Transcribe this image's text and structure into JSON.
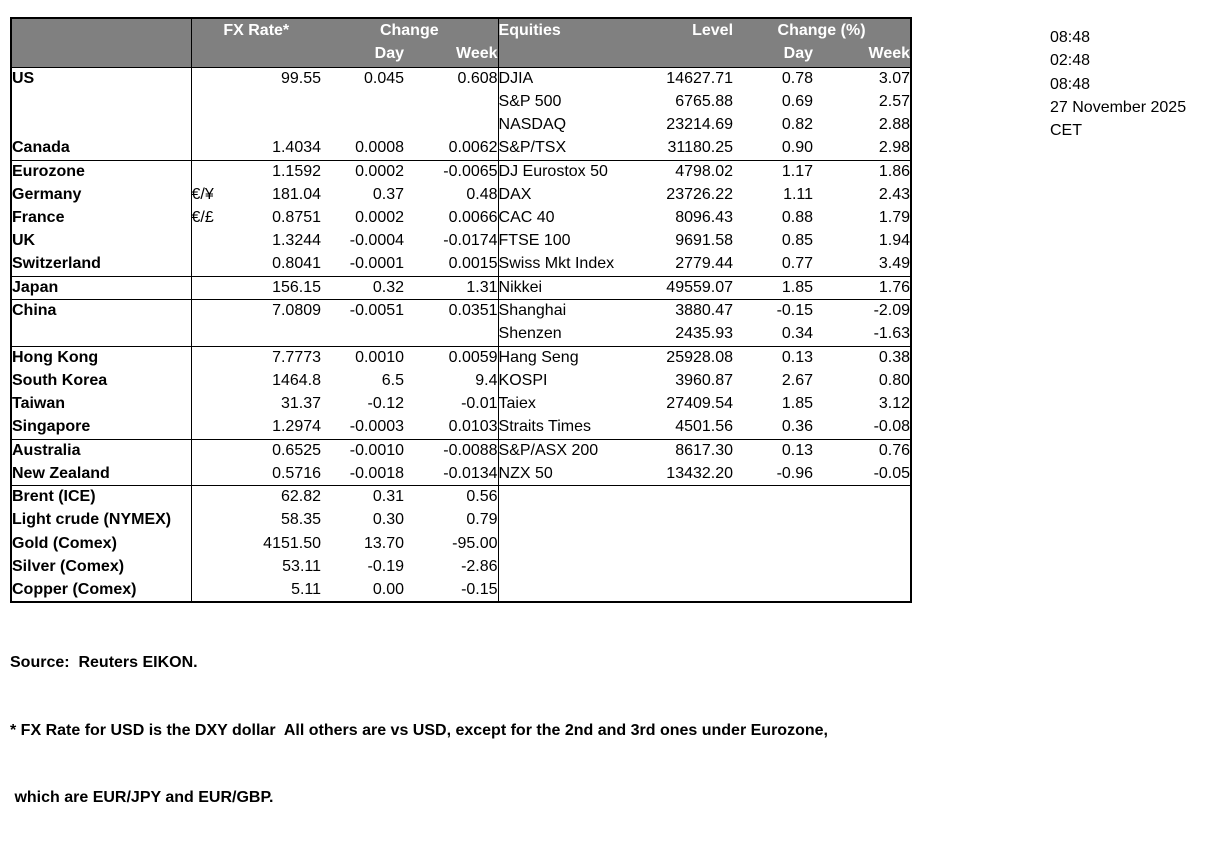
{
  "colors": {
    "header_bg": "#808080",
    "header_text": "#ffffff",
    "text": "#000000",
    "border": "#000000",
    "background": "#ffffff"
  },
  "table": {
    "header": {
      "fx_rate": "FX Rate*",
      "change": "Change",
      "day": "Day",
      "week": "Week",
      "equities": "Equities",
      "level": "Level",
      "change_pct": "Change (%)"
    },
    "rows": [
      {
        "country": "US",
        "indent": false,
        "sym": "",
        "rate": "99.55",
        "day": "0.045",
        "week": "0.608",
        "equity": "DJIA",
        "level": "14627.71",
        "eqDay": "0.78",
        "eqWeek": "3.07",
        "sep": false
      },
      {
        "country": "",
        "indent": false,
        "sym": "",
        "rate": "",
        "day": "",
        "week": "",
        "equity": "S&P 500",
        "level": "6765.88",
        "eqDay": "0.69",
        "eqWeek": "2.57",
        "sep": false
      },
      {
        "country": "",
        "indent": false,
        "sym": "",
        "rate": "",
        "day": "",
        "week": "",
        "equity": "NASDAQ",
        "level": "23214.69",
        "eqDay": "0.82",
        "eqWeek": "2.88",
        "sep": false
      },
      {
        "country": "Canada",
        "indent": false,
        "sym": "",
        "rate": "1.4034",
        "day": "0.0008",
        "week": "0.0062",
        "equity": "S&P/TSX",
        "level": "31180.25",
        "eqDay": "0.90",
        "eqWeek": "2.98",
        "sep": false
      },
      {
        "country": "Eurozone",
        "indent": false,
        "sym": "",
        "rate": "1.1592",
        "day": "0.0002",
        "week": "-0.0065",
        "equity": "DJ Eurostox 50",
        "level": "4798.02",
        "eqDay": "1.17",
        "eqWeek": "1.86",
        "sep": true
      },
      {
        "country": "Germany",
        "indent": true,
        "sym": "€/¥",
        "rate": "181.04",
        "day": "0.37",
        "week": "0.48",
        "equity": "DAX",
        "level": "23726.22",
        "eqDay": "1.11",
        "eqWeek": "2.43",
        "sep": false
      },
      {
        "country": "France",
        "indent": true,
        "sym": "€/£",
        "rate": "0.8751",
        "day": "0.0002",
        "week": "0.0066",
        "equity": "CAC 40",
        "level": "8096.43",
        "eqDay": "0.88",
        "eqWeek": "1.79",
        "sep": false
      },
      {
        "country": "UK",
        "indent": false,
        "sym": "",
        "rate": "1.3244",
        "day": "-0.0004",
        "week": "-0.0174",
        "equity": "FTSE 100",
        "level": "9691.58",
        "eqDay": "0.85",
        "eqWeek": "1.94",
        "sep": false
      },
      {
        "country": "Switzerland",
        "indent": false,
        "sym": "",
        "rate": "0.8041",
        "day": "-0.0001",
        "week": "0.0015",
        "equity": "Swiss Mkt Index",
        "level": "2779.44",
        "eqDay": "0.77",
        "eqWeek": "3.49",
        "sep": false
      },
      {
        "country": "Japan",
        "indent": false,
        "sym": "",
        "rate": "156.15",
        "day": "0.32",
        "week": "1.31",
        "equity": "Nikkei",
        "level": "49559.07",
        "eqDay": "1.85",
        "eqWeek": "1.76",
        "sep": true
      },
      {
        "country": "China",
        "indent": false,
        "sym": "",
        "rate": "7.0809",
        "day": "-0.0051",
        "week": "0.0351",
        "equity": "Shanghai",
        "level": "3880.47",
        "eqDay": "-0.15",
        "eqWeek": "-2.09",
        "sep": true
      },
      {
        "country": "",
        "indent": false,
        "sym": "",
        "rate": "",
        "day": "",
        "week": "",
        "equity": "Shenzen",
        "level": "2435.93",
        "eqDay": "0.34",
        "eqWeek": "-1.63",
        "sep": false
      },
      {
        "country": "Hong Kong",
        "indent": false,
        "sym": "",
        "rate": "7.7773",
        "day": "0.0010",
        "week": "0.0059",
        "equity": "Hang Seng",
        "level": "25928.08",
        "eqDay": "0.13",
        "eqWeek": "0.38",
        "sep": true
      },
      {
        "country": "South Korea",
        "indent": false,
        "sym": "",
        "rate": "1464.8",
        "day": "6.5",
        "week": "9.4",
        "equity": "KOSPI",
        "level": "3960.87",
        "eqDay": "2.67",
        "eqWeek": "0.80",
        "sep": false
      },
      {
        "country": "Taiwan",
        "indent": false,
        "sym": "",
        "rate": "31.37",
        "day": "-0.12",
        "week": "-0.01",
        "equity": "Taiex",
        "level": "27409.54",
        "eqDay": "1.85",
        "eqWeek": "3.12",
        "sep": false
      },
      {
        "country": "Singapore",
        "indent": false,
        "sym": "",
        "rate": "1.2974",
        "day": "-0.0003",
        "week": "0.0103",
        "equity": "Straits Times",
        "level": "4501.56",
        "eqDay": "0.36",
        "eqWeek": "-0.08",
        "sep": false
      },
      {
        "country": "Australia",
        "indent": false,
        "sym": "",
        "rate": "0.6525",
        "day": "-0.0010",
        "week": "-0.0088",
        "equity": "S&P/ASX  200",
        "level": "8617.30",
        "eqDay": "0.13",
        "eqWeek": "0.76",
        "sep": true
      },
      {
        "country": "New Zealand",
        "indent": false,
        "sym": "",
        "rate": "0.5716",
        "day": "-0.0018",
        "week": "-0.0134",
        "equity": "NZX 50",
        "level": "13432.20",
        "eqDay": "-0.96",
        "eqWeek": "-0.05",
        "sep": false
      },
      {
        "country": "Brent (ICE)",
        "indent": false,
        "sym": "",
        "rate": "62.82",
        "day": "0.31",
        "week": "0.56",
        "equity": "",
        "level": "",
        "eqDay": "",
        "eqWeek": "",
        "sep": true
      },
      {
        "country": "Light crude (NYMEX)",
        "indent": false,
        "sym": "",
        "rate": "58.35",
        "day": "0.30",
        "week": "0.79",
        "equity": "",
        "level": "",
        "eqDay": "",
        "eqWeek": "",
        "sep": false
      },
      {
        "country": "Gold (Comex)",
        "indent": false,
        "sym": "",
        "rate": "4151.50",
        "day": "13.70",
        "week": "-95.00",
        "equity": "",
        "level": "",
        "eqDay": "",
        "eqWeek": "",
        "sep": false
      },
      {
        "country": "Silver (Comex)",
        "indent": false,
        "sym": "",
        "rate": "53.11",
        "day": "-0.19",
        "week": "-2.86",
        "equity": "",
        "level": "",
        "eqDay": "",
        "eqWeek": "",
        "sep": false
      },
      {
        "country": "Copper (Comex)",
        "indent": false,
        "sym": "",
        "rate": "5.11",
        "day": "0.00",
        "week": "-0.15",
        "equity": "",
        "level": "",
        "eqDay": "",
        "eqWeek": "",
        "sep": false
      }
    ]
  },
  "timestamps": [
    "08:48",
    "02:48",
    "08:48",
    "27 November 2025",
    "CET"
  ],
  "footer": {
    "source": "Source:  Reuters EIKON.",
    "note1": "* FX Rate for USD is the DXY dollar  All others are vs USD, except for the 2nd and 3rd ones under Eurozone,",
    "note2": " which are EUR/JPY and EUR/GBP."
  }
}
